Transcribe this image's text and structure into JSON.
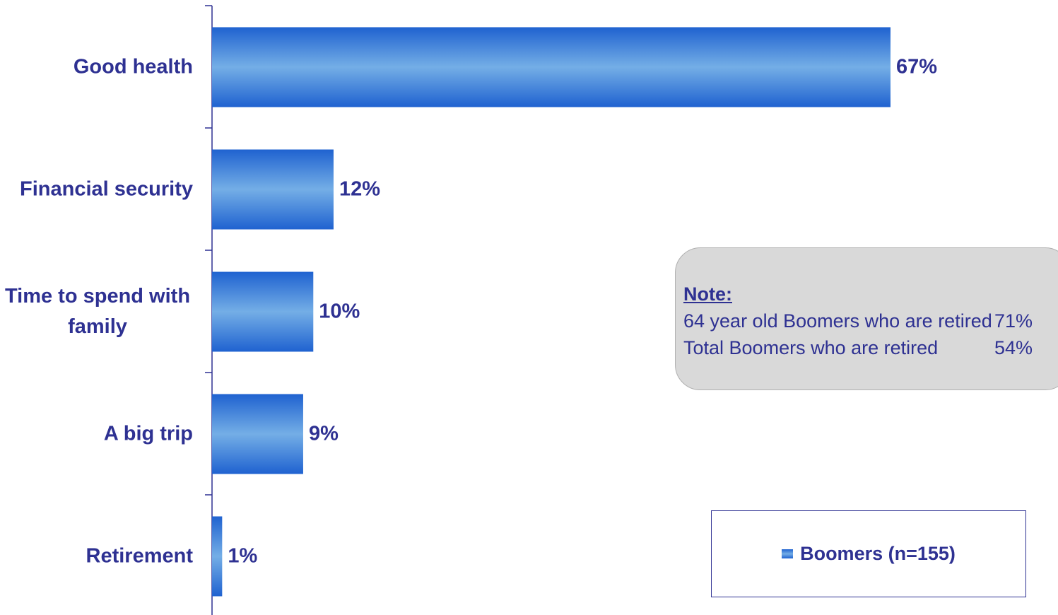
{
  "chart_data": {
    "type": "bar",
    "orientation": "horizontal",
    "categories": [
      "Good health",
      "Financial security",
      "Time to spend with family",
      "A big trip",
      "Retirement"
    ],
    "series": [
      {
        "name": "Boomers (n=155)",
        "color": "#4a8be0",
        "values": [
          67,
          12,
          10,
          9,
          1
        ],
        "value_labels": [
          "67%",
          "12%",
          "10%",
          "9%",
          "1%"
        ]
      }
    ],
    "xlim": [
      0,
      70
    ],
    "note": {
      "title": "Note:",
      "rows": [
        [
          "64 year old Boomers who are retired",
          "71%"
        ],
        [
          "Total Boomers who are retired",
          "54%"
        ]
      ]
    },
    "legend": "bottom-right"
  }
}
